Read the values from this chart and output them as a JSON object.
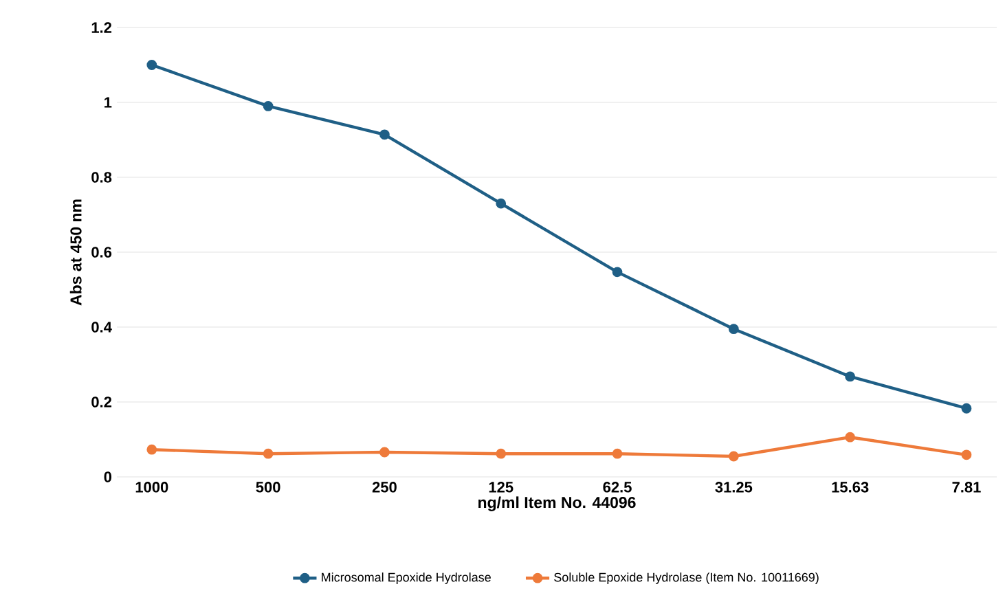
{
  "chart_data": {
    "type": "line",
    "xlabel": "ng/ml Item No. 44096",
    "ylabel": "Abs at 450 nm",
    "categories": [
      "1000",
      "500",
      "250",
      "125",
      "62.5",
      "31.25",
      "15.63",
      "7.81"
    ],
    "series": [
      {
        "name": "Microsomal Epoxide Hydrolase",
        "color": "#1f5f86",
        "values": [
          1.1,
          0.99,
          0.914,
          0.73,
          0.547,
          0.395,
          0.268,
          0.183
        ]
      },
      {
        "name": "Soluble Epoxide Hydrolase (Item No. 10011669)",
        "color": "#ee7a3a",
        "values": [
          0.073,
          0.062,
          0.066,
          0.062,
          0.062,
          0.055,
          0.106,
          0.059
        ]
      }
    ],
    "ylim": [
      0,
      1.2
    ],
    "yticks": [
      0,
      0.2,
      0.4,
      0.6,
      0.8,
      1,
      1.2
    ],
    "grid": "y",
    "legend": "bottom",
    "marker": "circle",
    "line_style": "solid"
  }
}
